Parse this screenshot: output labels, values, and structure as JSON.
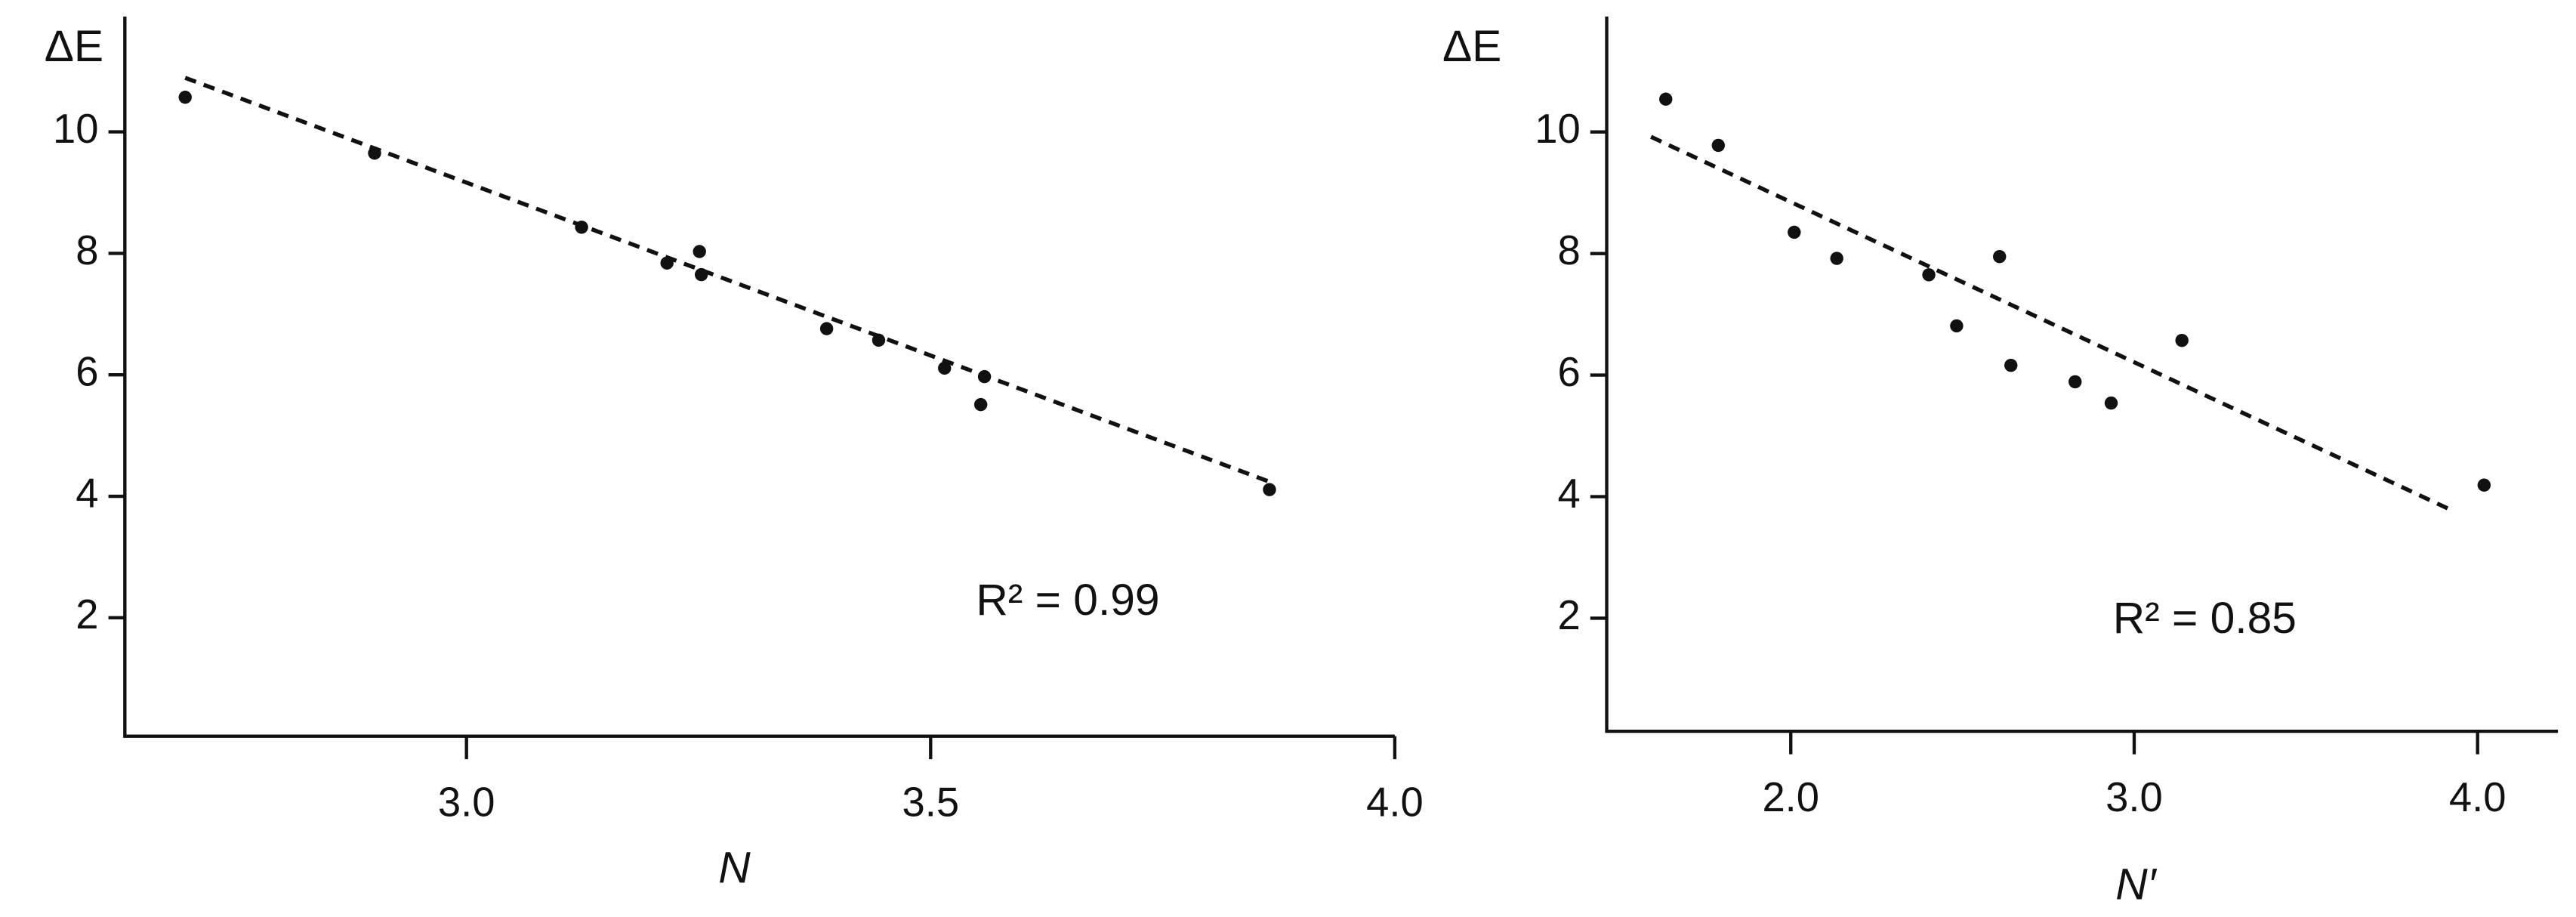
{
  "chart_data": [
    {
      "type": "scatter",
      "x_label": "N",
      "y_label": "ΔE",
      "annotation": "R² = 0.99",
      "x": [
        2.697,
        2.901,
        3.124,
        3.216,
        3.251,
        3.253,
        3.388,
        3.444,
        3.515,
        3.558,
        3.554,
        3.865
      ],
      "values": [
        10.57,
        9.65,
        8.43,
        7.84,
        8.03,
        7.65,
        6.76,
        6.57,
        6.11,
        5.97,
        5.51,
        4.11
      ],
      "trendline": {
        "x": [
          2.697,
          3.865
        ],
        "y": [
          10.89,
          4.24
        ]
      },
      "color": "#111111",
      "xlim": [
        2.632,
        4.0
      ],
      "ylim": [
        0.05,
        11.9
      ],
      "xticks": [
        {
          "value": 3.0,
          "label": "3.0"
        },
        3.5,
        {
          "value": 4.0,
          "label": "4.0"
        }
      ],
      "yticks": [
        2,
        4,
        6,
        8,
        10
      ]
    },
    {
      "type": "scatter",
      "x_label": "N′",
      "y_label": "ΔE",
      "annotation": "R² = 0.85",
      "x": [
        1.636,
        1.789,
        2.01,
        2.134,
        2.402,
        2.608,
        2.483,
        2.641,
        2.828,
        2.933,
        3.139,
        4.019
      ],
      "values": [
        10.54,
        9.78,
        8.35,
        7.92,
        7.65,
        7.95,
        6.81,
        6.16,
        5.89,
        5.54,
        6.57,
        4.19
      ],
      "trendline": {
        "x": [
          1.593,
          3.923
        ],
        "y": [
          9.92,
          3.78
        ]
      },
      "color": "#111111",
      "xlim": [
        1.464,
        4.234
      ],
      "ylim": [
        0.14,
        11.9
      ],
      "xticks": [
        {
          "value": 2.0,
          "label": "2.0"
        },
        {
          "value": 3.0,
          "label": "3.0"
        },
        {
          "value": 4.0,
          "label": "4.0"
        }
      ],
      "yticks": [
        2,
        4,
        6,
        8,
        10
      ]
    }
  ]
}
